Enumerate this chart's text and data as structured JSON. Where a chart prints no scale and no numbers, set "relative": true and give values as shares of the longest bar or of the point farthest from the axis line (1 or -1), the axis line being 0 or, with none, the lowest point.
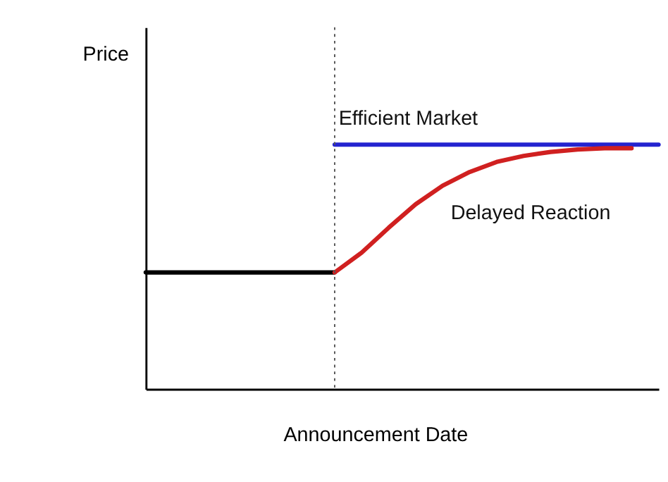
{
  "chart_data": {
    "type": "line",
    "relative": true,
    "xlabel": "Announcement Date",
    "ylabel": "Price",
    "grid": false,
    "legend": false,
    "marker": "none",
    "line_style": "solid",
    "categories": [
      null,
      null,
      null,
      null,
      null,
      null,
      null,
      null,
      null,
      null,
      null,
      null,
      null,
      null,
      null,
      null,
      null,
      null,
      null,
      null
    ],
    "series": [
      {
        "color": "#000000",
        "values": [
          0.477,
          0.477,
          0.477,
          0.477,
          0.477,
          0.477,
          0.477,
          0.477,
          null,
          null,
          null,
          null,
          null,
          null,
          null,
          null,
          null,
          null,
          null,
          null
        ]
      },
      {
        "name": "Efficient Market",
        "color": "#2424d0",
        "values": [
          null,
          null,
          null,
          null,
          null,
          null,
          null,
          1,
          1,
          1,
          1,
          1,
          1,
          1,
          1,
          1,
          1,
          1,
          1,
          1
        ]
      },
      {
        "name": "Delayed Reaction",
        "color": "#d02020",
        "values": [
          null,
          null,
          null,
          null,
          null,
          null,
          null,
          0.477,
          0.558,
          0.66,
          0.756,
          0.832,
          0.888,
          0.929,
          0.954,
          0.97,
          0.98,
          0.985,
          0.985,
          null
        ]
      }
    ]
  }
}
